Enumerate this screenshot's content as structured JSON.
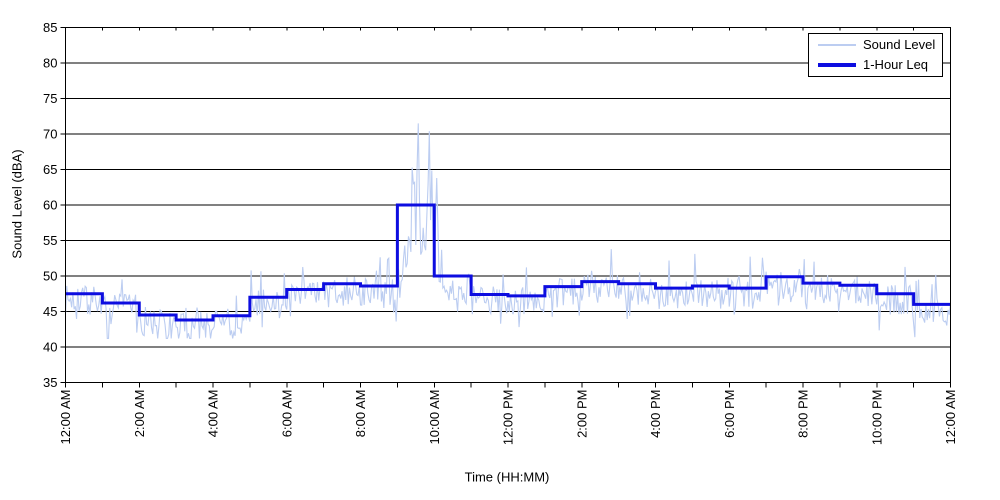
{
  "chart_data": {
    "type": "line",
    "title": "",
    "xlabel": "Time (HH:MM)",
    "ylabel": "Sound Level (dBA)",
    "ylim": [
      35,
      85
    ],
    "y_tick_step": 5,
    "y_tick_labels": [
      "35",
      "40",
      "45",
      "50",
      "55",
      "60",
      "65",
      "70",
      "75",
      "80",
      "85"
    ],
    "xlim_hours": [
      0,
      24
    ],
    "x_minor_tick_every_hours": 1,
    "x_label_every_hours": 2,
    "x_tick_labels": [
      "12:00 AM",
      "2:00 AM",
      "4:00 AM",
      "6:00 AM",
      "8:00 AM",
      "10:00 AM",
      "12:00 PM",
      "2:00 PM",
      "4:00 PM",
      "6:00 PM",
      "8:00 PM",
      "10:00 PM",
      "12:00 AM"
    ],
    "grid": "horizontal",
    "legend_position": "top-right",
    "series": [
      {
        "name": "Sound Level",
        "type": "noisy_line",
        "color": "#bccdf1",
        "sample_minutes": 2,
        "approx_range_dba": [
          41.2,
          71.5
        ],
        "peak_event": {
          "start": "9:10 AM",
          "end": "10:08 AM",
          "max_dba": 71.5,
          "peak_times": [
            "9:34 AM",
            "9:52 AM"
          ]
        },
        "synthesis": {
          "seed": 7,
          "center_offset_db": -0.9,
          "noise_halfband_db": 2.1,
          "upspike_chance": 0.05,
          "upspike_max_db": 5.6,
          "downspike_chance": 0.05,
          "downspike_max_db": 4.6,
          "floor_dba": 41.2,
          "ceiling_dba": 71.5
        }
      },
      {
        "name": "1-Hour Leq",
        "type": "step",
        "color": "#0d0de0",
        "hours": [
          "12 AM",
          "1 AM",
          "2 AM",
          "3 AM",
          "4 AM",
          "5 AM",
          "6 AM",
          "7 AM",
          "8 AM",
          "9 AM",
          "10 AM",
          "11 AM",
          "12 PM",
          "1 PM",
          "2 PM",
          "3 PM",
          "4 PM",
          "5 PM",
          "6 PM",
          "7 PM",
          "8 PM",
          "9 PM",
          "10 PM",
          "11 PM"
        ],
        "hourly_leq_dba": [
          47.5,
          46.2,
          44.5,
          43.8,
          44.4,
          47.0,
          48.1,
          48.9,
          48.6,
          60.0,
          50.0,
          47.4,
          47.2,
          48.5,
          49.2,
          48.9,
          48.3,
          48.6,
          48.3,
          49.9,
          49.0,
          48.7,
          47.5,
          46.0
        ]
      }
    ]
  },
  "legend": {
    "items": [
      {
        "label": "Sound Level"
      },
      {
        "label": "1-Hour Leq"
      }
    ]
  },
  "frame": {
    "grid_color": "#000000",
    "border_color": "#000000",
    "background": "#ffffff"
  }
}
